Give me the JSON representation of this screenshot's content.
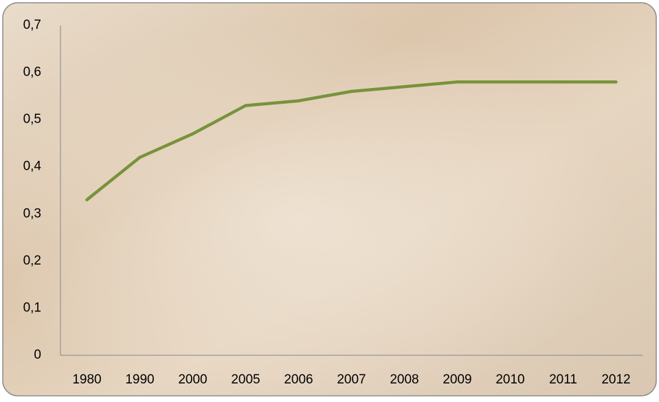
{
  "chart_data": {
    "type": "line",
    "categories": [
      "1980",
      "1990",
      "2000",
      "2005",
      "2006",
      "2007",
      "2008",
      "2009",
      "2010",
      "2011",
      "2012"
    ],
    "values": [
      0.33,
      0.42,
      0.47,
      0.53,
      0.54,
      0.56,
      0.57,
      0.58,
      0.58,
      0.58,
      0.58
    ],
    "color": "#77933c",
    "ylim": [
      0,
      0.7
    ],
    "yticks": [
      0,
      {
        "value": 0.1,
        "label": "0,1"
      },
      {
        "value": 0.2,
        "label": "0,2"
      },
      {
        "value": 0.3,
        "label": "0,3"
      },
      {
        "value": 0.4,
        "label": "0,4"
      },
      {
        "value": 0.5,
        "label": "0,5"
      },
      {
        "value": 0.6,
        "label": "0,6"
      },
      {
        "value": 0.7,
        "label": "0,7"
      }
    ],
    "grid": false
  }
}
